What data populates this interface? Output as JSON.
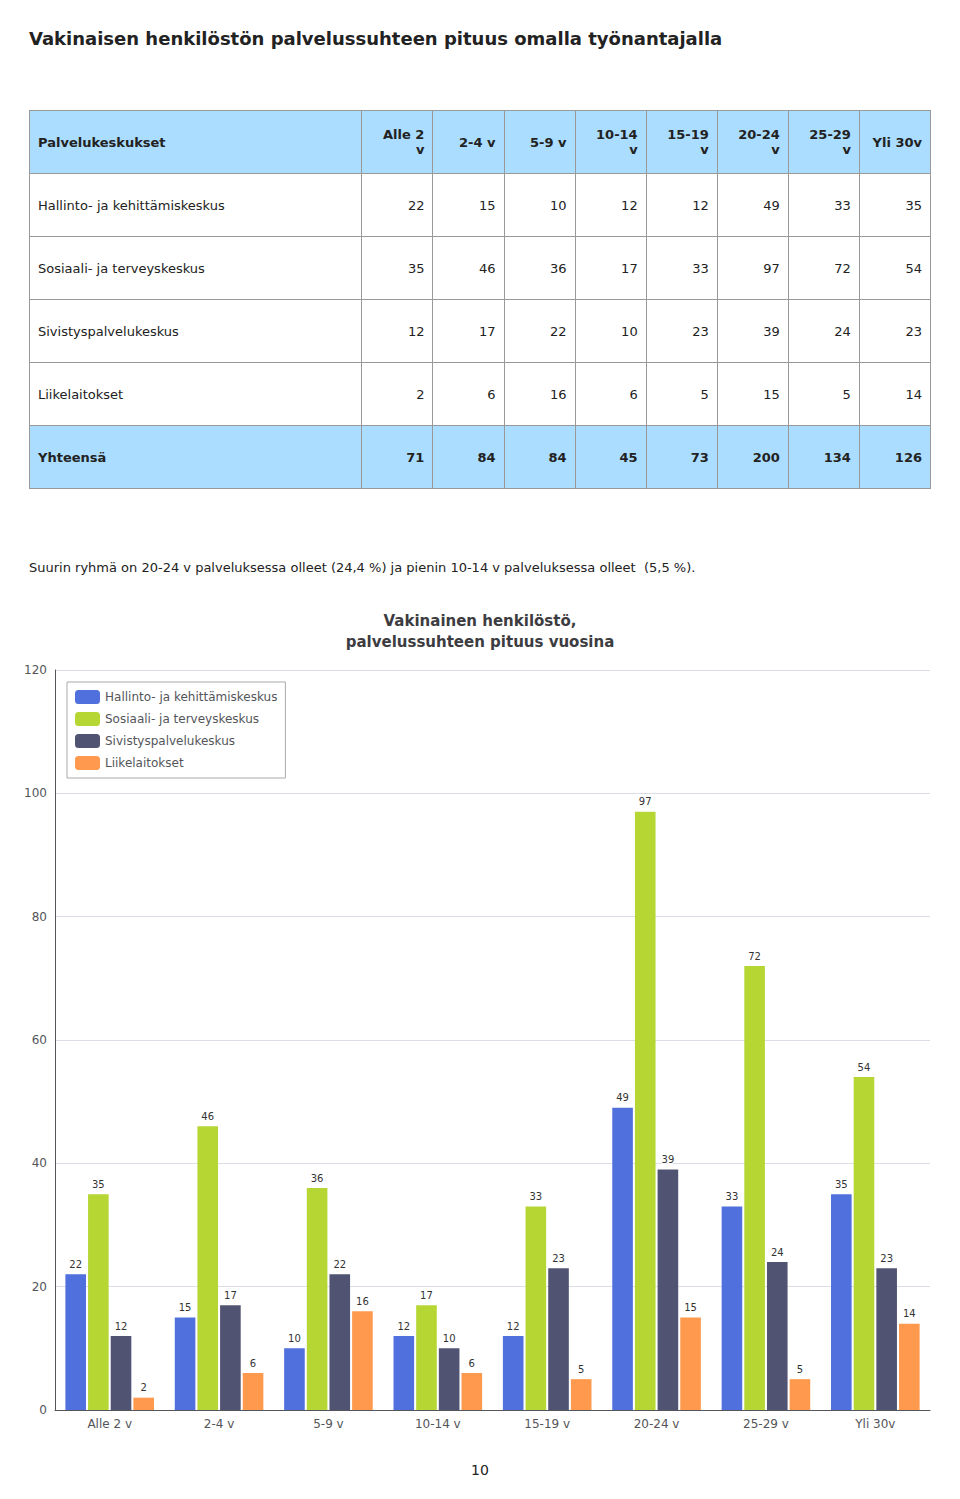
{
  "title": "Vakinaisen henkilöstön palvelussuhteen pituus omalla työnantajalla",
  "table": {
    "header": [
      "Palvelukeskukset",
      "Alle 2 v",
      "2-4 v",
      "5-9 v",
      "10-14 v",
      "15-19 v",
      "20-24 v",
      "25-29 v",
      "Yli 30v"
    ],
    "rows": [
      [
        "Hallinto- ja kehittämiskeskus",
        22,
        15,
        10,
        12,
        12,
        49,
        33,
        35
      ],
      [
        "Sosiaali- ja terveyskeskus",
        35,
        46,
        36,
        17,
        33,
        97,
        72,
        54
      ],
      [
        "Sivistyspalvelukeskus",
        12,
        17,
        22,
        10,
        23,
        39,
        24,
        23
      ],
      [
        "Liikelaitokset",
        2,
        6,
        16,
        6,
        5,
        15,
        5,
        14
      ]
    ],
    "total": [
      "Yhteensä",
      71,
      84,
      84,
      45,
      73,
      200,
      134,
      126
    ],
    "header_color": "#aaddff",
    "total_color": "#aaddff"
  },
  "note": "Suurin ryhmä on 20-24 v palveluksessa olleet (24,4 %) ja pienin 10-14 v palveluksessa olleet  (5,5 %).",
  "page_number": "10",
  "chart_data": {
    "type": "bar",
    "title": "Vakinainen henkilöstö,\npalvelussuhteen pituus vuosina",
    "categories": [
      "Alle 2 v",
      "2-4 v",
      "5-9 v",
      "10-14 v",
      "15-19 v",
      "20-24 v",
      "25-29 v",
      "Yli 30v"
    ],
    "series": [
      {
        "name": "Hallinto- ja kehittämiskeskus",
        "values": [
          22,
          15,
          10,
          12,
          12,
          49,
          33,
          35
        ]
      },
      {
        "name": "Sosiaali- ja terveyskeskus",
        "values": [
          35,
          46,
          36,
          17,
          33,
          97,
          72,
          54
        ]
      },
      {
        "name": "Sivistyspalvelukeskus",
        "values": [
          12,
          17,
          22,
          10,
          23,
          39,
          24,
          23
        ]
      },
      {
        "name": "Liikelaitokset",
        "values": [
          2,
          6,
          16,
          6,
          5,
          15,
          5,
          14
        ]
      }
    ],
    "ylim": [
      0,
      120
    ],
    "yticks": [
      0,
      20,
      40,
      60,
      80,
      100,
      120
    ],
    "grid": true,
    "legend": "upper left",
    "data_labels": true
  }
}
